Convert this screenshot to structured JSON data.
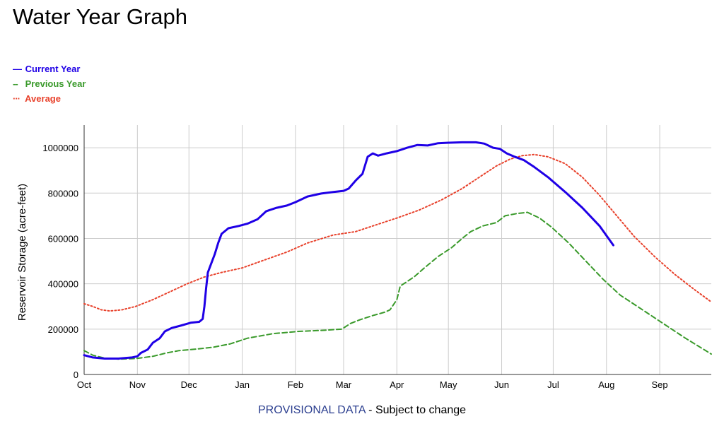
{
  "title": "Water Year Graph",
  "footer": {
    "provisional": "PROVISIONAL DATA",
    "suffix": " - Subject to change"
  },
  "chart_data": {
    "type": "line",
    "title": "Water Year Graph",
    "xlabel": "",
    "ylabel": "Reservoir Storage (acre-feet)",
    "ylim": [
      0,
      1100000
    ],
    "yticks": [
      0,
      200000,
      400000,
      600000,
      800000,
      1000000
    ],
    "ytick_labels": [
      "0",
      "200000",
      "400000",
      "600000",
      "800000",
      "1000000"
    ],
    "xlim": [
      0,
      365
    ],
    "month_ticks": [
      {
        "label": "Oct",
        "day": 0
      },
      {
        "label": "Nov",
        "day": 31
      },
      {
        "label": "Dec",
        "day": 61
      },
      {
        "label": "Jan",
        "day": 92
      },
      {
        "label": "Feb",
        "day": 123
      },
      {
        "label": "Mar",
        "day": 151
      },
      {
        "label": "Apr",
        "day": 182
      },
      {
        "label": "May",
        "day": 212
      },
      {
        "label": "Jun",
        "day": 243
      },
      {
        "label": "Jul",
        "day": 273
      },
      {
        "label": "Aug",
        "day": 304
      },
      {
        "label": "Sep",
        "day": 335
      }
    ],
    "grid": true,
    "legend_position": "top-left",
    "series": [
      {
        "name": "Current Year",
        "color": "#1f00e6",
        "style": "solid",
        "points": [
          [
            0,
            85000
          ],
          [
            5,
            75000
          ],
          [
            12,
            70000
          ],
          [
            20,
            70000
          ],
          [
            28,
            75000
          ],
          [
            31,
            80000
          ],
          [
            33,
            95000
          ],
          [
            37,
            110000
          ],
          [
            40,
            140000
          ],
          [
            44,
            160000
          ],
          [
            47,
            190000
          ],
          [
            51,
            205000
          ],
          [
            56,
            215000
          ],
          [
            62,
            228000
          ],
          [
            67,
            232000
          ],
          [
            69,
            245000
          ],
          [
            70,
            300000
          ],
          [
            71,
            380000
          ],
          [
            72,
            450000
          ],
          [
            74,
            490000
          ],
          [
            76,
            530000
          ],
          [
            78,
            580000
          ],
          [
            80,
            620000
          ],
          [
            84,
            645000
          ],
          [
            90,
            655000
          ],
          [
            95,
            665000
          ],
          [
            101,
            685000
          ],
          [
            106,
            720000
          ],
          [
            112,
            735000
          ],
          [
            118,
            745000
          ],
          [
            123,
            760000
          ],
          [
            130,
            785000
          ],
          [
            138,
            798000
          ],
          [
            145,
            805000
          ],
          [
            151,
            810000
          ],
          [
            154,
            820000
          ],
          [
            158,
            855000
          ],
          [
            162,
            885000
          ],
          [
            165,
            960000
          ],
          [
            168,
            975000
          ],
          [
            171,
            965000
          ],
          [
            176,
            975000
          ],
          [
            182,
            985000
          ],
          [
            188,
            1000000
          ],
          [
            194,
            1012000
          ],
          [
            200,
            1010000
          ],
          [
            206,
            1020000
          ],
          [
            212,
            1022000
          ],
          [
            220,
            1024000
          ],
          [
            228,
            1024000
          ],
          [
            233,
            1018000
          ],
          [
            238,
            1000000
          ],
          [
            242,
            995000
          ],
          [
            246,
            975000
          ],
          [
            250,
            962000
          ],
          [
            256,
            945000
          ],
          [
            262,
            915000
          ],
          [
            270,
            870000
          ],
          [
            280,
            805000
          ],
          [
            290,
            735000
          ],
          [
            300,
            655000
          ],
          [
            308,
            570000
          ]
        ]
      },
      {
        "name": "Previous Year",
        "color": "#3a9a2b",
        "style": "dashed",
        "points": [
          [
            0,
            105000
          ],
          [
            5,
            85000
          ],
          [
            12,
            72000
          ],
          [
            20,
            68000
          ],
          [
            30,
            70000
          ],
          [
            40,
            80000
          ],
          [
            48,
            95000
          ],
          [
            55,
            105000
          ],
          [
            65,
            112000
          ],
          [
            75,
            120000
          ],
          [
            85,
            135000
          ],
          [
            95,
            160000
          ],
          [
            110,
            180000
          ],
          [
            125,
            190000
          ],
          [
            140,
            195000
          ],
          [
            150,
            200000
          ],
          [
            155,
            225000
          ],
          [
            160,
            240000
          ],
          [
            168,
            260000
          ],
          [
            175,
            275000
          ],
          [
            178,
            285000
          ],
          [
            182,
            330000
          ],
          [
            184,
            390000
          ],
          [
            188,
            410000
          ],
          [
            192,
            430000
          ],
          [
            198,
            470000
          ],
          [
            206,
            520000
          ],
          [
            214,
            560000
          ],
          [
            220,
            600000
          ],
          [
            225,
            630000
          ],
          [
            232,
            655000
          ],
          [
            240,
            670000
          ],
          [
            245,
            700000
          ],
          [
            252,
            710000
          ],
          [
            258,
            715000
          ],
          [
            265,
            690000
          ],
          [
            272,
            650000
          ],
          [
            282,
            580000
          ],
          [
            292,
            500000
          ],
          [
            302,
            420000
          ],
          [
            312,
            350000
          ],
          [
            324,
            290000
          ],
          [
            336,
            230000
          ],
          [
            350,
            160000
          ],
          [
            365,
            90000
          ]
        ]
      },
      {
        "name": "Average",
        "color": "#e8412b",
        "style": "dotted",
        "points": [
          [
            0,
            312000
          ],
          [
            5,
            300000
          ],
          [
            10,
            285000
          ],
          [
            15,
            280000
          ],
          [
            22,
            285000
          ],
          [
            30,
            300000
          ],
          [
            40,
            330000
          ],
          [
            50,
            365000
          ],
          [
            60,
            400000
          ],
          [
            70,
            430000
          ],
          [
            80,
            450000
          ],
          [
            92,
            470000
          ],
          [
            105,
            505000
          ],
          [
            118,
            540000
          ],
          [
            130,
            580000
          ],
          [
            145,
            615000
          ],
          [
            158,
            630000
          ],
          [
            170,
            660000
          ],
          [
            182,
            690000
          ],
          [
            195,
            725000
          ],
          [
            208,
            770000
          ],
          [
            220,
            820000
          ],
          [
            230,
            870000
          ],
          [
            240,
            920000
          ],
          [
            248,
            950000
          ],
          [
            255,
            965000
          ],
          [
            262,
            970000
          ],
          [
            270,
            960000
          ],
          [
            280,
            930000
          ],
          [
            290,
            870000
          ],
          [
            300,
            790000
          ],
          [
            310,
            700000
          ],
          [
            320,
            610000
          ],
          [
            332,
            520000
          ],
          [
            344,
            440000
          ],
          [
            356,
            370000
          ],
          [
            365,
            320000
          ]
        ]
      }
    ]
  }
}
